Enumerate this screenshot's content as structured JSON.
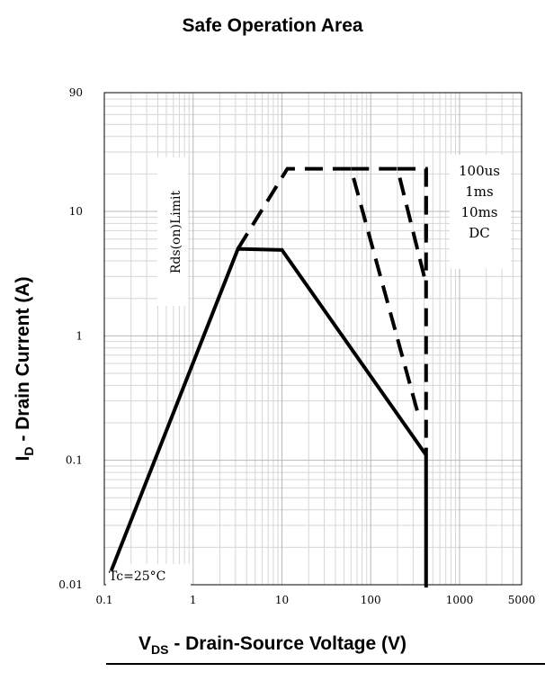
{
  "chart_data": {
    "type": "line",
    "title": "Safe Operation Area",
    "xlabel_main": "V",
    "xlabel_sub": "DS",
    "xlabel_rest": " - Drain-Source Voltage (V)",
    "ylabel_main": "I",
    "ylabel_sub": "D",
    "ylabel_rest": " - Drain Current (A)",
    "x_scale": "log",
    "y_scale": "log",
    "xlim": [
      0.1,
      5000
    ],
    "ylim": [
      0.01,
      90
    ],
    "x_ticks": [
      0.1,
      1,
      10,
      100,
      1000,
      5000
    ],
    "x_tick_labels": [
      "0.1",
      "1",
      "10",
      "100",
      "1000",
      "5000"
    ],
    "y_ticks": [
      0.01,
      0.1,
      1,
      10,
      90
    ],
    "y_tick_labels": [
      "0.01",
      "0.1",
      "1",
      "10",
      "90"
    ],
    "grid": true,
    "series": [
      {
        "name": "DC",
        "style": "solid",
        "points": [
          [
            0.12,
            0.013
          ],
          [
            3.2,
            5.0
          ],
          [
            10,
            4.9
          ],
          [
            420,
            0.11
          ],
          [
            420,
            0.0095
          ]
        ]
      },
      {
        "name": "10ms",
        "style": "dashed",
        "points": [
          [
            3.2,
            5.0
          ],
          [
            11.5,
            22
          ],
          [
            60,
            22
          ],
          [
            350,
            0.22
          ]
        ]
      },
      {
        "name": "1ms",
        "style": "dashed",
        "points": [
          [
            60,
            22
          ],
          [
            200,
            22
          ],
          [
            420,
            2.6
          ]
        ]
      },
      {
        "name": "100us",
        "style": "dashed",
        "points": [
          [
            200,
            22
          ],
          [
            420,
            22
          ],
          [
            420,
            6.0
          ]
        ]
      },
      {
        "name": "Rds(on)Limit",
        "style": "dashed",
        "points": [
          [
            420,
            22
          ],
          [
            420,
            0.11
          ]
        ]
      }
    ],
    "annotations": {
      "rds_limit": "Rds(on)Limit",
      "legend_box": [
        "100us",
        "1ms",
        "10ms",
        "DC"
      ],
      "temperature": "Tc=25°C"
    }
  }
}
